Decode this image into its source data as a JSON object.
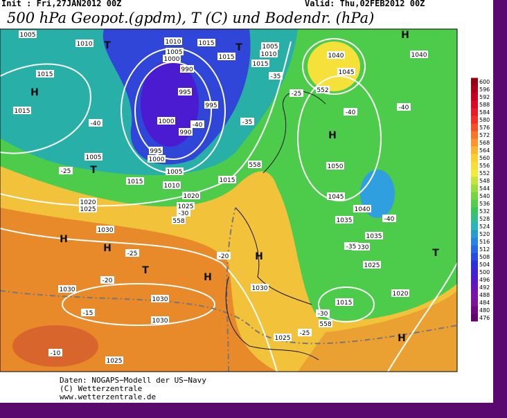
{
  "header": {
    "init": "Init : Fri,27JAN2012 00Z",
    "valid": "Valid: Thu,02FEB2012 00Z",
    "title": "500 hPa Geopot.(gpdm), T (C) und Bodendr. (hPa)"
  },
  "map": {
    "labels": [
      "1005",
      "1010",
      "T",
      "1010",
      "1005",
      "1000",
      "1015",
      "1015",
      "T",
      "1005",
      "1010",
      "1015",
      "1040",
      "1040",
      "1045",
      "H",
      "1015",
      "H",
      "990",
      "995",
      "995",
      "1015",
      "-40",
      "1000",
      "-40",
      "990",
      "995",
      "1000",
      "1005",
      "T",
      "-25",
      "H",
      "-40",
      "-40",
      "-35",
      "-25",
      "-35",
      "1050",
      "1005",
      "1015",
      "1010",
      "1015",
      "1045",
      "1020",
      "1025",
      "1020",
      "1025",
      "-30",
      "1040",
      "1035",
      "-40",
      "1030",
      "H",
      "H",
      "-25",
      "-20",
      "H",
      "1035",
      "1030",
      "-35",
      "1025",
      "T",
      "T",
      "H",
      "-20",
      "1030",
      "1030",
      "1030",
      "1020",
      "1015",
      "-15",
      "-30",
      "1030",
      "H",
      "1025",
      "-25",
      "-10",
      "1025",
      "552",
      "558",
      "558",
      "558"
    ]
  },
  "colorbar": {
    "ticks": [
      600,
      596,
      592,
      588,
      584,
      580,
      576,
      572,
      568,
      564,
      560,
      556,
      552,
      548,
      544,
      540,
      536,
      532,
      528,
      524,
      520,
      516,
      512,
      508,
      504,
      500,
      496,
      492,
      488,
      484,
      480,
      476
    ]
  },
  "footer": {
    "lines": [
      "Daten: NOGAPS−Modell der US−Navy",
      "(C) Wetterzentrale",
      "www.wetterzentrale.de"
    ]
  }
}
